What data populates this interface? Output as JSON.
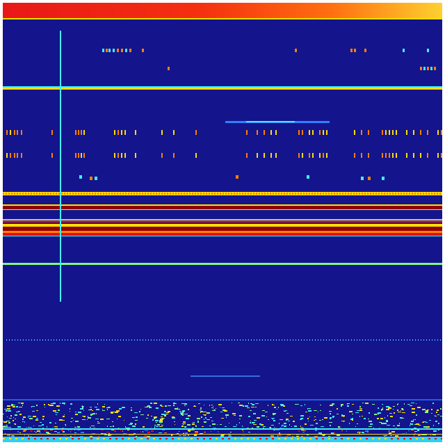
{
  "image": {
    "kind": "spectrogram-heatmap",
    "colormap": "jet",
    "colors": {
      "background": "#14148c",
      "low": "#00008f",
      "cyan": "#40f0f0",
      "green": "#80ff80",
      "yellow": "#ffe000",
      "orange": "#ff8000",
      "red": "#e01010",
      "dark_red": "#900000"
    }
  }
}
